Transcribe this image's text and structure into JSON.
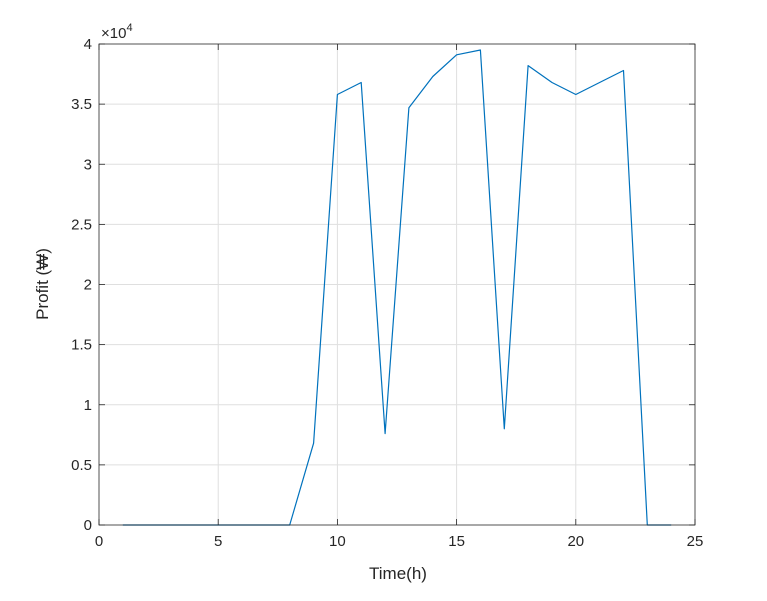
{
  "chart_data": {
    "type": "line",
    "title": "",
    "xlabel": "Time(h)",
    "ylabel": "Profit (₩)",
    "xlim": [
      0,
      25
    ],
    "ylim": [
      0,
      40000
    ],
    "xticks": [
      0,
      5,
      10,
      15,
      20,
      25
    ],
    "xtick_labels": [
      "0",
      "5",
      "10",
      "15",
      "20",
      "25"
    ],
    "yticks": [
      0,
      5000,
      10000,
      15000,
      20000,
      25000,
      30000,
      35000,
      40000
    ],
    "ytick_labels": [
      "0",
      "0.5",
      "1",
      "1.5",
      "2",
      "2.5",
      "3",
      "3.5",
      "4"
    ],
    "y_exponent_label": "×10",
    "y_exponent_power": "4",
    "grid": true,
    "legend": "none",
    "line_color": "#0072bd",
    "series": [
      {
        "x": [
          1,
          2,
          3,
          4,
          5,
          6,
          7,
          8,
          9,
          10,
          11,
          12,
          13,
          14,
          15,
          16,
          17,
          18,
          19,
          20,
          21,
          22,
          23,
          24
        ],
        "values": [
          0,
          0,
          0,
          0,
          0,
          0,
          0,
          0,
          6800,
          35800,
          36800,
          7600,
          34700,
          37300,
          39100,
          39500,
          8000,
          38200,
          36800,
          35800,
          36800,
          37800,
          0,
          0
        ]
      }
    ]
  }
}
